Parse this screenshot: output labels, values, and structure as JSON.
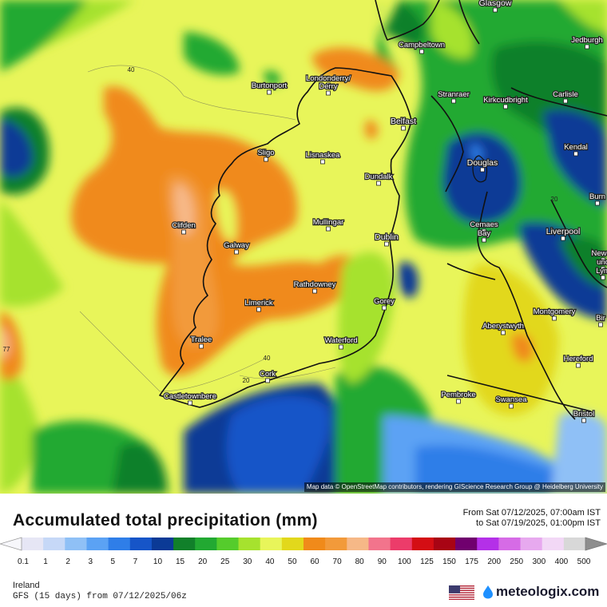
{
  "map": {
    "attribution": "Map data © OpenStreetMap contributors, rendering GIScience Research Group @ Heidelberg University",
    "cities": [
      {
        "name": "Glasgow"
      },
      {
        "name": "Campbeltown"
      },
      {
        "name": "Jedburgh"
      },
      {
        "name": "Londonderry/"
      },
      {
        "name": "Derry"
      },
      {
        "name": "Burtonport"
      },
      {
        "name": "Stranraer"
      },
      {
        "name": "Kirkcudbright"
      },
      {
        "name": "Carlisle"
      },
      {
        "name": "Belfast"
      },
      {
        "name": "Sligo"
      },
      {
        "name": "Lisnaskea"
      },
      {
        "name": "Kendal"
      },
      {
        "name": "Douglas"
      },
      {
        "name": "Dundalk"
      },
      {
        "name": "Clifden"
      },
      {
        "name": "Mullingar"
      },
      {
        "name": "Cemaes"
      },
      {
        "name": "Bay"
      },
      {
        "name": "Liverpool"
      },
      {
        "name": "Dublin"
      },
      {
        "name": "Galway"
      },
      {
        "name": "Rathdowney"
      },
      {
        "name": "Limerick"
      },
      {
        "name": "Gorey"
      },
      {
        "name": "Montgomery"
      },
      {
        "name": "Aberystwyth"
      },
      {
        "name": "Tralee"
      },
      {
        "name": "Waterford"
      },
      {
        "name": "Hereford"
      },
      {
        "name": "Cork"
      },
      {
        "name": "Castletownbere"
      },
      {
        "name": "Pembroke"
      },
      {
        "name": "Swansea"
      },
      {
        "name": "Bristol"
      },
      {
        "name": "Newca"
      },
      {
        "name": "und"
      },
      {
        "name": "Lym"
      },
      {
        "name": "Burn"
      },
      {
        "name": "Bir"
      }
    ],
    "contour_labels": [
      "40",
      "40",
      "20",
      "20",
      "77"
    ]
  },
  "header": {
    "title": "Accumulated total precipitation (mm)",
    "from": "From Sat 07/12/2025, 07:00am IST",
    "to": "to Sat 07/19/2025, 01:00pm IST"
  },
  "legend": {
    "ticks": [
      "0.1",
      "1",
      "2",
      "3",
      "5",
      "7",
      "10",
      "15",
      "20",
      "25",
      "30",
      "40",
      "50",
      "60",
      "70",
      "80",
      "90",
      "100",
      "125",
      "150",
      "175",
      "200",
      "250",
      "300",
      "400",
      "500"
    ],
    "colors": [
      "#e6e6f5",
      "#c6d8f7",
      "#8fc0f6",
      "#5ba2f4",
      "#2f7ee8",
      "#1655c8",
      "#0b3a96",
      "#11802a",
      "#22a932",
      "#55cc2c",
      "#a6e22e",
      "#e8f55a",
      "#e2d81c",
      "#f08a1a",
      "#f29a3a",
      "#f6b887",
      "#f2748c",
      "#ec3c6a",
      "#d40e14",
      "#a80414",
      "#70006e",
      "#b430e8",
      "#d66be6",
      "#e7a9ef",
      "#f2d8f6",
      "#d8d8d8"
    ]
  },
  "footer": {
    "region": "Ireland",
    "model": "GFS (15 days) from 07/12/2025/06z",
    "brand": "meteologix.com"
  }
}
